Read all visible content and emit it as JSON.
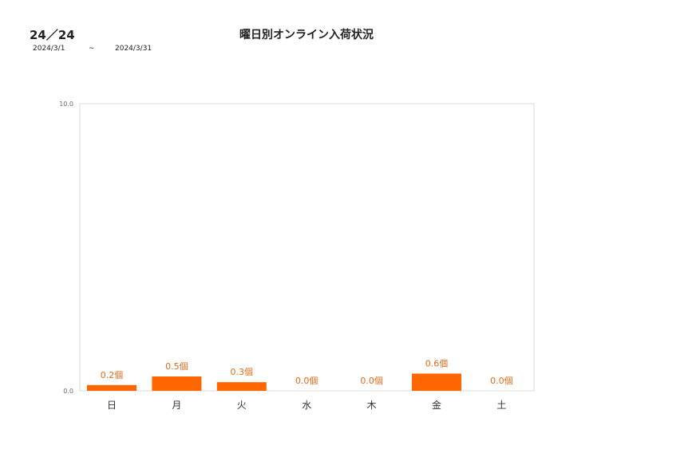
{
  "header": {
    "code": "24／24",
    "start_date": "2024/3/1",
    "separator": "~",
    "end_date": "2024/3/31",
    "title": "曜日別オンライン入荷状況"
  },
  "chart_data": {
    "type": "bar",
    "title": "曜日別オンライン入荷状況",
    "xlabel": "",
    "ylabel": "",
    "ylim": [
      0,
      10
    ],
    "y_ticks": [
      "0.0",
      "10.0"
    ],
    "categories": [
      "日",
      "月",
      "火",
      "水",
      "木",
      "金",
      "土"
    ],
    "values": [
      0.2,
      0.5,
      0.3,
      0.0,
      0.0,
      0.6,
      0.0
    ],
    "value_labels": [
      "0.2個",
      "0.5個",
      "0.3個",
      "0.0個",
      "0.0個",
      "0.6個",
      "0.0個"
    ],
    "bar_color": "#ff6600",
    "label_color": "#e06a1a",
    "grid": false,
    "legend": "none"
  }
}
